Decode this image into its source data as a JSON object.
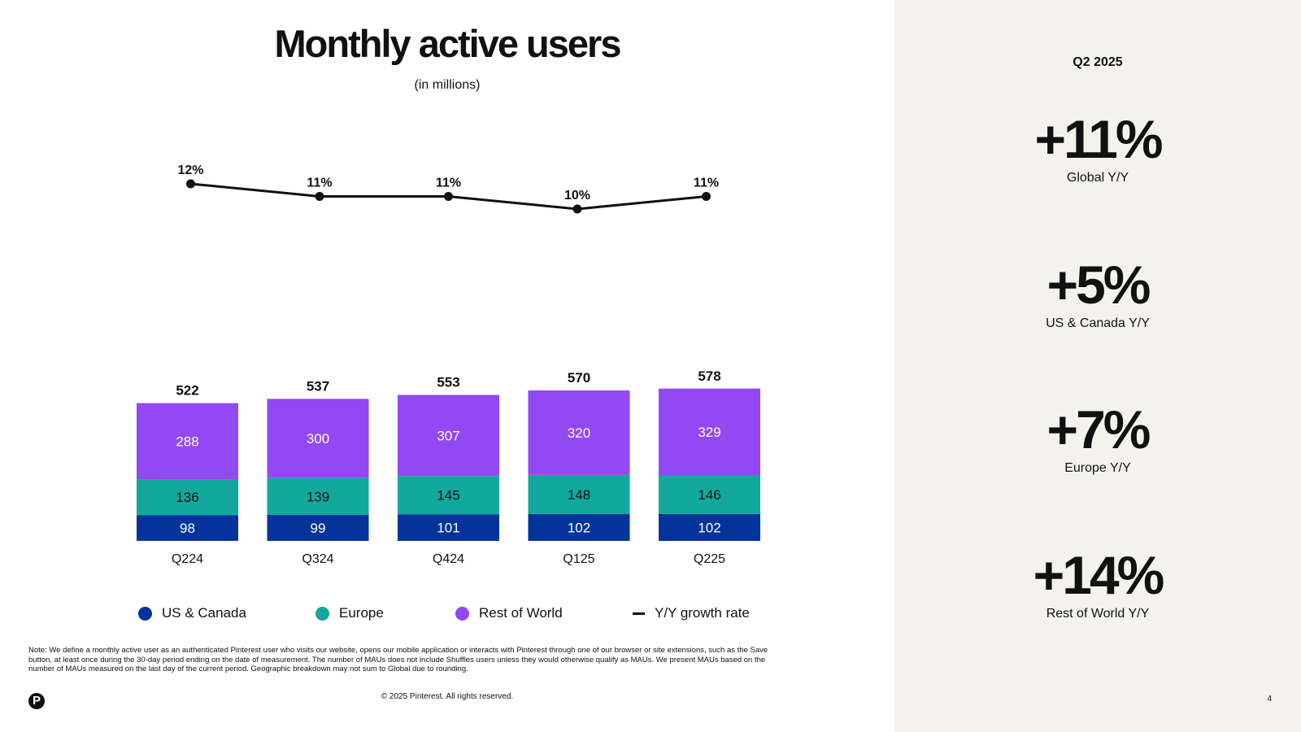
{
  "title": "Monthly active users",
  "subtitle": "(in millions)",
  "chart_data": {
    "type": "bar",
    "stacked": true,
    "categories": [
      "Q224",
      "Q324",
      "Q424",
      "Q125",
      "Q225"
    ],
    "series": [
      {
        "name": "US & Canada",
        "values": [
          98,
          99,
          101,
          102,
          102
        ],
        "color": "#03349a"
      },
      {
        "name": "Europe",
        "values": [
          136,
          139,
          145,
          148,
          146
        ],
        "color": "#12a89d"
      },
      {
        "name": "Rest of World",
        "values": [
          288,
          300,
          307,
          320,
          329
        ],
        "color": "#9249f4"
      }
    ],
    "totals": [
      522,
      537,
      553,
      570,
      578
    ],
    "line": {
      "name": "Y/Y growth rate",
      "values": [
        12,
        11,
        11,
        10,
        11
      ],
      "labels": [
        "12%",
        "11%",
        "11%",
        "10%",
        "11%"
      ],
      "color": "#111111"
    },
    "legend_position": "bottom",
    "grid": false
  },
  "note": "Note: We define a monthly active user as an authenticated Pinterest user who visits our website, opens our mobile application or interacts with Pinterest through one of our browser or site extensions, such as the Save button, at least once during the 30-day period ending on the date of measurement. The number of MAUs does not include Shuffles users unless they would otherwise qualify as MAUs. We present MAUs based on the number of MAUs measured on the last day of the current period. Geographic breakdown may not sum to Global due to rounding.",
  "copyright": "© 2025 Pinterest. All rights reserved.",
  "logo": "P",
  "page_number": "4",
  "panel": {
    "period": "Q2 2025",
    "kpis": [
      {
        "value": "+11%",
        "label": "Global Y/Y"
      },
      {
        "value": "+5%",
        "label": "US & Canada Y/Y"
      },
      {
        "value": "+7%",
        "label": "Europe Y/Y"
      },
      {
        "value": "+14%",
        "label": "Rest of World Y/Y"
      }
    ]
  }
}
